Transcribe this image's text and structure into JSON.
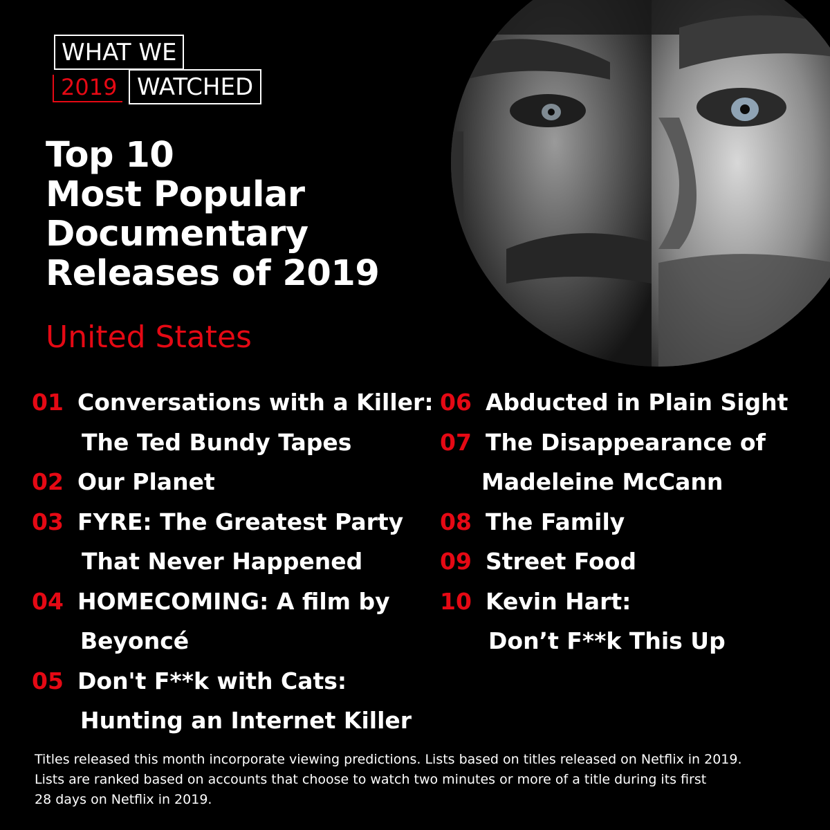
{
  "logo": {
    "line1": "WHAT WE",
    "year": "2019",
    "line2": "WATCHED"
  },
  "heading": {
    "lines": [
      "Top 10",
      "Most Popular",
      "Documentary",
      "Releases of 2019"
    ],
    "region": "United States"
  },
  "colors": {
    "accent": "#e50914",
    "background": "#000000",
    "text": "#ffffff"
  },
  "photo": {
    "icon": "documentary-portrait-image",
    "style": "black-and-white split face in circular crop"
  },
  "list": {
    "left": [
      {
        "rank": "01",
        "lines": [
          "Conversations with a Killer:",
          "The Ted Bundy Tapes"
        ]
      },
      {
        "rank": "02",
        "lines": [
          "Our Planet"
        ]
      },
      {
        "rank": "03",
        "lines": [
          "FYRE: The Greatest Party",
          "That Never Happened"
        ]
      },
      {
        "rank": "04",
        "lines": [
          "HOMECOMING: A film by",
          "Beyoncé"
        ]
      },
      {
        "rank": "05",
        "lines": [
          "Don't F**k with Cats:",
          "Hunting an Internet Killer"
        ]
      }
    ],
    "right": [
      {
        "rank": "06",
        "lines": [
          "Abducted in Plain Sight"
        ]
      },
      {
        "rank": "07",
        "lines": [
          "The Disappearance of",
          "Madeleine McCann"
        ]
      },
      {
        "rank": "08",
        "lines": [
          "The Family"
        ]
      },
      {
        "rank": "09",
        "lines": [
          "Street Food"
        ]
      },
      {
        "rank": "10",
        "lines": [
          "Kevin Hart:",
          "Don’t F**k This Up"
        ]
      }
    ]
  },
  "footer": {
    "lines": [
      "Titles released this month incorporate viewing predictions. Lists based on titles released on Netflix in 2019.",
      "Lists are ranked based on accounts that choose to watch two minutes or more of a title during its first",
      "28 days on Netflix in 2019."
    ]
  }
}
